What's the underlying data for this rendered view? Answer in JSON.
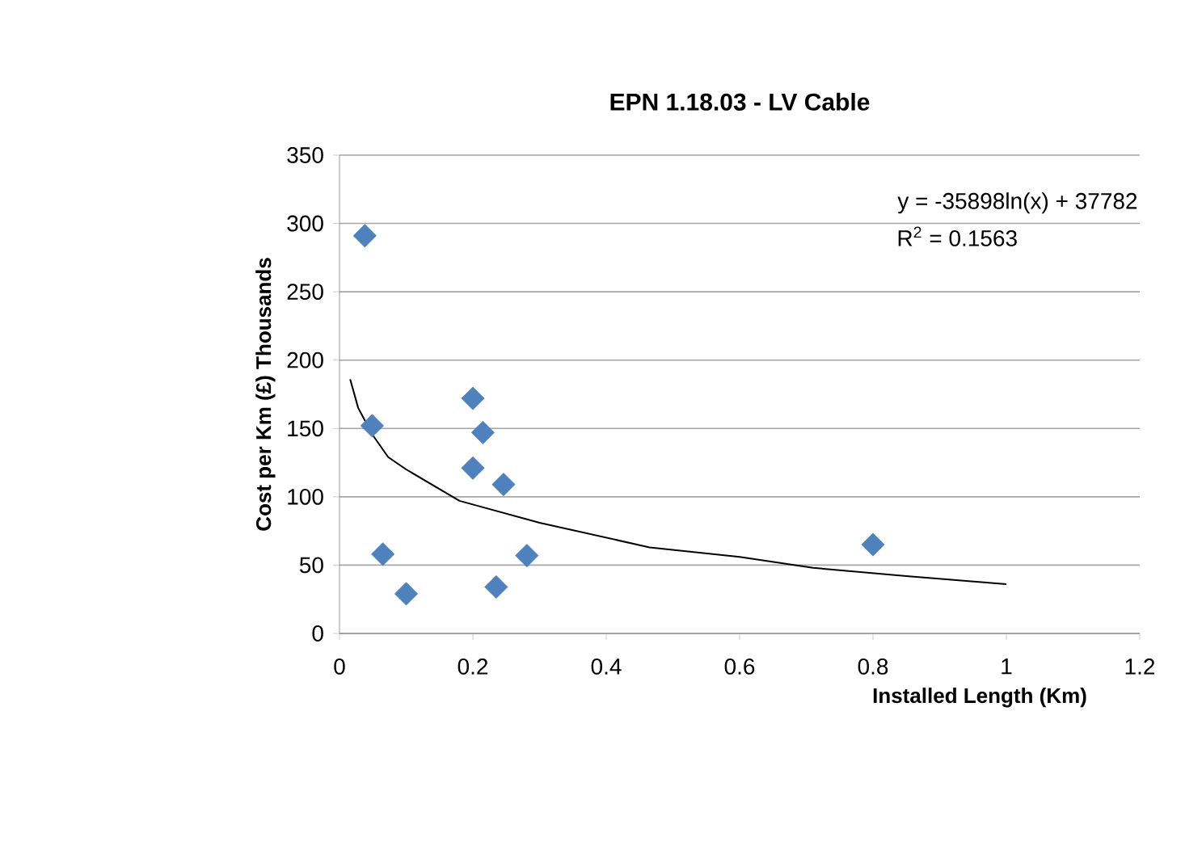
{
  "chart_data": {
    "type": "scatter",
    "title": "EPN 1.18.03 - LV Cable",
    "xlabel": "Installed Length (Km)",
    "ylabel": "Cost per Km (£)   Thousands",
    "annotations": [
      "y = -35898ln(x) + 37782",
      "R$^{2}$ = 0.1563"
    ],
    "series": [
      {
        "type": "scatter",
        "color": "#4f81bd",
        "marker": "diamond",
        "x": [
          0.038,
          0.049,
          0.065,
          0.1,
          0.2,
          0.215,
          0.2,
          0.246,
          0.235,
          0.281,
          0.8
        ],
        "values": [
          291,
          152,
          58,
          29,
          172,
          147,
          121,
          109,
          34,
          57,
          65
        ]
      },
      {
        "type": "line",
        "color": "#000000",
        "marker": "none",
        "x": [
          0.016,
          0.028,
          0.05,
          0.073,
          0.1,
          0.18,
          0.3,
          0.465,
          0.6,
          0.71,
          0.85,
          1.0
        ],
        "values": [
          186,
          165,
          145,
          129,
          120,
          97,
          81,
          63,
          56,
          48,
          42,
          36
        ]
      }
    ],
    "xlim": [
      0,
      1.2
    ],
    "xticks": [
      0,
      0.2,
      0.4,
      0.6,
      0.8,
      1,
      1.2
    ],
    "ylim": [
      0,
      350
    ],
    "yticks": [
      0,
      50,
      100,
      150,
      200,
      250,
      300,
      350
    ],
    "grid": "y"
  }
}
